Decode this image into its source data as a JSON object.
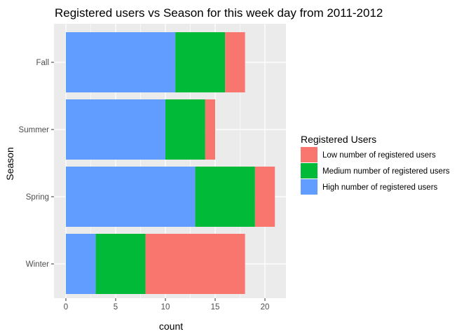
{
  "chart_data": {
    "type": "bar",
    "orientation": "horizontal",
    "stacked": true,
    "title": "Registered users vs Season for this week day from 2011-2012",
    "xlabel": "count",
    "ylabel": "Season",
    "categories": [
      "Fall",
      "Summer",
      "Spring",
      "Winter"
    ],
    "series": [
      {
        "name": "High number of registered users",
        "color": "#619CFF",
        "values": [
          11,
          10,
          13,
          3
        ]
      },
      {
        "name": "Medium number of registered users",
        "color": "#00BA38",
        "values": [
          5,
          4,
          6,
          5
        ]
      },
      {
        "name": "Low number of registered users",
        "color": "#F8766D",
        "values": [
          2,
          1,
          2,
          10
        ]
      }
    ],
    "xlim": [
      -1,
      22
    ],
    "xticks": [
      0,
      5,
      10,
      15,
      20
    ],
    "grid": true,
    "panel_background": "#EBEBEB",
    "legend": {
      "title": "Registered Users",
      "position": "right",
      "order": [
        "Low number of registered users",
        "Medium number of registered users",
        "High number of registered users"
      ]
    }
  }
}
